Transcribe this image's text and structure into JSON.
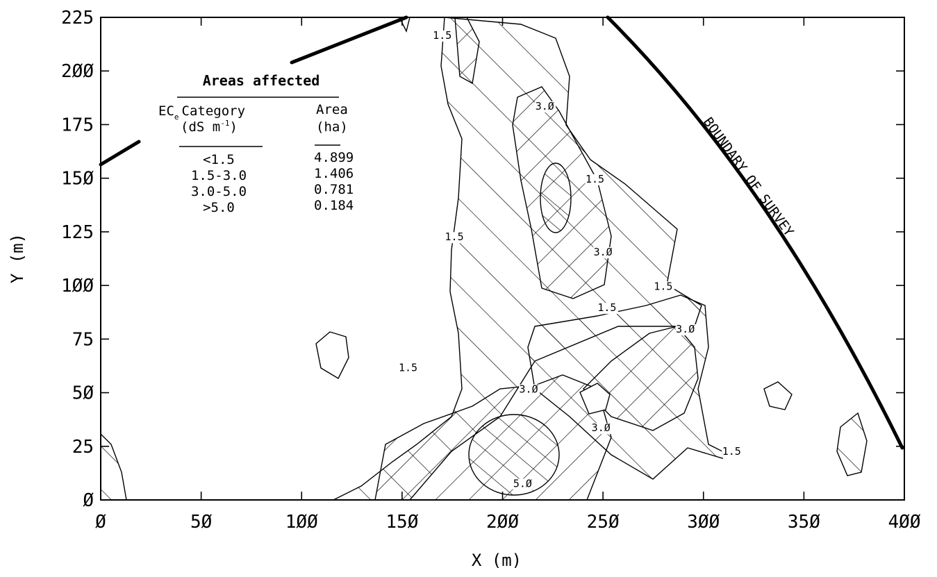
{
  "chart_data": {
    "type": "contour",
    "xlabel": "X (m)",
    "ylabel": "Y (m)",
    "xlim": [
      0,
      400
    ],
    "ylim": [
      0,
      225
    ],
    "xticks": [
      0,
      50,
      100,
      150,
      200,
      250,
      300,
      350,
      400
    ],
    "yticks": [
      0,
      25,
      50,
      75,
      100,
      125,
      150,
      175,
      200,
      225
    ],
    "xtick_labels": [
      "Ø",
      "5Ø",
      "1ØØ",
      "15Ø",
      "2ØØ",
      "25Ø",
      "3ØØ",
      "35Ø",
      "4ØØ"
    ],
    "ytick_labels": [
      "Ø",
      "25",
      "5Ø",
      "75",
      "1ØØ",
      "125",
      "15Ø",
      "175",
      "2ØØ",
      "225"
    ],
    "contour_levels": [
      1.5,
      3.0,
      5.0
    ],
    "contour_labels": [
      {
        "text": "1.5",
        "x": 170,
        "y": 215
      },
      {
        "text": "3.Ø",
        "x": 221,
        "y": 182
      },
      {
        "text": "1.5",
        "x": 246,
        "y": 148
      },
      {
        "text": "1.5",
        "x": 176,
        "y": 121
      },
      {
        "text": "3.Ø",
        "x": 250,
        "y": 114
      },
      {
        "text": "1.5",
        "x": 252,
        "y": 88
      },
      {
        "text": "1.5",
        "x": 280,
        "y": 98
      },
      {
        "text": "3.Ø",
        "x": 291,
        "y": 78
      },
      {
        "text": "1.5",
        "x": 153,
        "y": 60
      },
      {
        "text": "3.Ø",
        "x": 213,
        "y": 50
      },
      {
        "text": "3.Ø",
        "x": 249,
        "y": 32
      },
      {
        "text": "1.5",
        "x": 314,
        "y": 21
      },
      {
        "text": "5.Ø",
        "x": 210,
        "y": 6
      }
    ],
    "annotation": "BOUNDARY OF SURVEY",
    "legend_table": {
      "title": "Areas affected",
      "col1_header_1": "EC",
      "col1_header_sub": "e",
      "col1_header_2": "Category",
      "col1_unit": "(dS m",
      "col1_unit_sup": "-1",
      "col1_unit_close": ")",
      "col2_header": "Area",
      "col2_unit": "(ha)",
      "rows": [
        {
          "category": "<1.5",
          "area": 4.899
        },
        {
          "category": "1.5-3.0",
          "area": 1.406
        },
        {
          "category": "3.0-5.0",
          "area": 0.781
        },
        {
          "category": ">5.0",
          "area": 0.184
        }
      ]
    }
  }
}
